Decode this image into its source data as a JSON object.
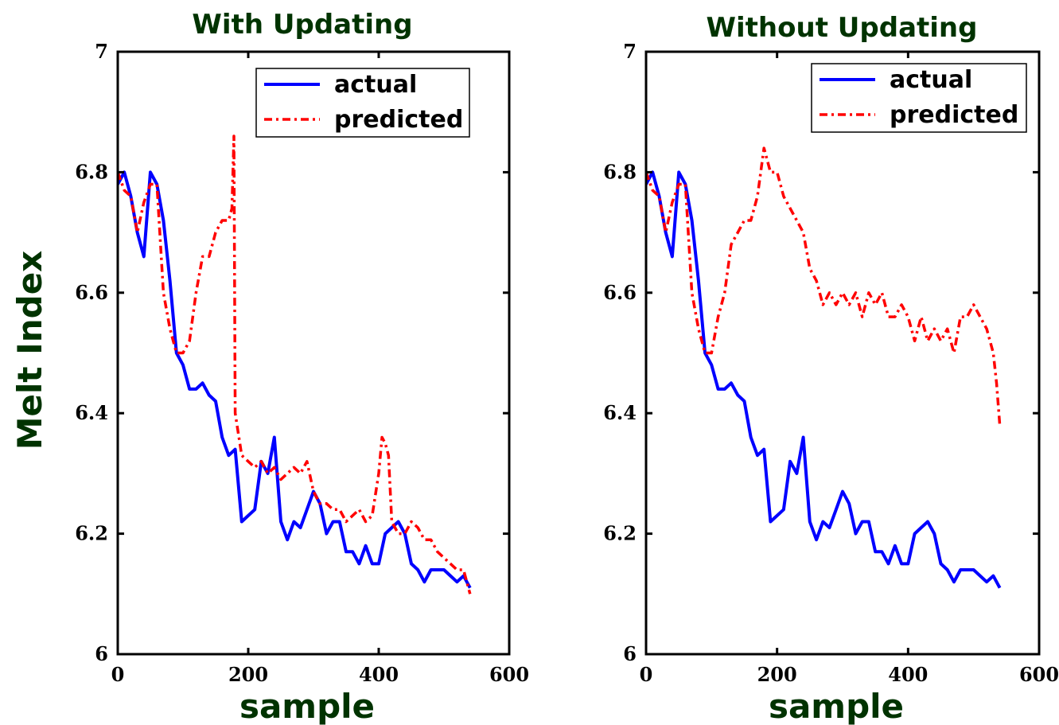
{
  "colors": {
    "actual": "#0000ff",
    "predicted": "#ff0000",
    "label": "#003300",
    "axis": "#000000"
  },
  "chart_data": [
    {
      "type": "line",
      "title": "With Updating",
      "xlabel": "sample",
      "ylabel": "Melt Index",
      "xlim": [
        0,
        600
      ],
      "ylim": [
        6,
        7
      ],
      "xticks": [
        "0",
        "200",
        "400",
        "600"
      ],
      "yticks": [
        "6",
        "6.2",
        "6.4",
        "6.6",
        "6.8",
        "7"
      ],
      "legend_position": "top-right",
      "grid": false,
      "series": [
        {
          "name": "actual",
          "x": [
            0,
            10,
            20,
            30,
            40,
            50,
            60,
            70,
            80,
            90,
            100,
            110,
            120,
            130,
            140,
            150,
            160,
            170,
            180,
            190,
            200,
            210,
            220,
            230,
            240,
            250,
            260,
            270,
            280,
            290,
            300,
            310,
            320,
            330,
            340,
            350,
            360,
            370,
            380,
            390,
            400,
            410,
            420,
            430,
            440,
            450,
            460,
            470,
            480,
            490,
            500,
            510,
            520,
            530,
            540
          ],
          "y": [
            6.78,
            6.8,
            6.76,
            6.7,
            6.66,
            6.8,
            6.78,
            6.72,
            6.62,
            6.5,
            6.48,
            6.44,
            6.44,
            6.45,
            6.43,
            6.42,
            6.36,
            6.33,
            6.34,
            6.22,
            6.23,
            6.24,
            6.32,
            6.3,
            6.36,
            6.22,
            6.19,
            6.22,
            6.21,
            6.24,
            6.27,
            6.25,
            6.2,
            6.22,
            6.22,
            6.17,
            6.17,
            6.15,
            6.18,
            6.15,
            6.15,
            6.2,
            6.21,
            6.22,
            6.2,
            6.15,
            6.14,
            6.12,
            6.14,
            6.14,
            6.14,
            6.13,
            6.12,
            6.13,
            6.11
          ]
        },
        {
          "name": "predicted",
          "x": [
            0,
            10,
            20,
            30,
            40,
            50,
            60,
            70,
            80,
            90,
            100,
            110,
            120,
            130,
            140,
            150,
            160,
            170,
            175,
            178,
            180,
            190,
            200,
            210,
            220,
            230,
            240,
            250,
            260,
            270,
            280,
            290,
            300,
            310,
            320,
            330,
            340,
            350,
            360,
            370,
            380,
            390,
            400,
            405,
            410,
            415,
            420,
            430,
            440,
            450,
            460,
            470,
            480,
            490,
            500,
            510,
            520,
            530,
            540
          ],
          "y": [
            6.8,
            6.77,
            6.76,
            6.7,
            6.75,
            6.78,
            6.78,
            6.6,
            6.54,
            6.5,
            6.5,
            6.52,
            6.6,
            6.66,
            6.66,
            6.7,
            6.72,
            6.72,
            6.74,
            6.86,
            6.4,
            6.33,
            6.32,
            6.31,
            6.32,
            6.3,
            6.31,
            6.29,
            6.3,
            6.31,
            6.3,
            6.32,
            6.27,
            6.25,
            6.25,
            6.24,
            6.24,
            6.22,
            6.23,
            6.24,
            6.22,
            6.23,
            6.3,
            6.36,
            6.35,
            6.33,
            6.22,
            6.2,
            6.2,
            6.22,
            6.21,
            6.19,
            6.19,
            6.17,
            6.16,
            6.15,
            6.14,
            6.14,
            6.1
          ]
        }
      ]
    },
    {
      "type": "line",
      "title": "Without Updating",
      "xlabel": "sample",
      "ylabel": "",
      "xlim": [
        0,
        600
      ],
      "ylim": [
        6,
        7
      ],
      "xticks": [
        "0",
        "200",
        "400",
        "600"
      ],
      "yticks": [
        "6",
        "6.2",
        "6.4",
        "6.6",
        "6.8",
        "7"
      ],
      "legend_position": "top-right",
      "grid": false,
      "series": [
        {
          "name": "actual",
          "x": [
            0,
            10,
            20,
            30,
            40,
            50,
            60,
            70,
            80,
            90,
            100,
            110,
            120,
            130,
            140,
            150,
            160,
            170,
            180,
            190,
            200,
            210,
            220,
            230,
            240,
            250,
            260,
            270,
            280,
            290,
            300,
            310,
            320,
            330,
            340,
            350,
            360,
            370,
            380,
            390,
            400,
            410,
            420,
            430,
            440,
            450,
            460,
            470,
            480,
            490,
            500,
            510,
            520,
            530,
            540
          ],
          "y": [
            6.78,
            6.8,
            6.76,
            6.7,
            6.66,
            6.8,
            6.78,
            6.72,
            6.62,
            6.5,
            6.48,
            6.44,
            6.44,
            6.45,
            6.43,
            6.42,
            6.36,
            6.33,
            6.34,
            6.22,
            6.23,
            6.24,
            6.32,
            6.3,
            6.36,
            6.22,
            6.19,
            6.22,
            6.21,
            6.24,
            6.27,
            6.25,
            6.2,
            6.22,
            6.22,
            6.17,
            6.17,
            6.15,
            6.18,
            6.15,
            6.15,
            6.2,
            6.21,
            6.22,
            6.2,
            6.15,
            6.14,
            6.12,
            6.14,
            6.14,
            6.14,
            6.13,
            6.12,
            6.13,
            6.11
          ]
        },
        {
          "name": "predicted",
          "x": [
            0,
            10,
            20,
            30,
            40,
            50,
            60,
            70,
            80,
            90,
            100,
            110,
            120,
            130,
            140,
            150,
            160,
            170,
            180,
            190,
            200,
            210,
            220,
            230,
            240,
            250,
            260,
            270,
            280,
            290,
            300,
            310,
            320,
            330,
            340,
            350,
            360,
            370,
            380,
            390,
            400,
            410,
            420,
            430,
            440,
            450,
            460,
            470,
            480,
            490,
            500,
            510,
            520,
            530,
            535,
            540
          ],
          "y": [
            6.8,
            6.77,
            6.76,
            6.7,
            6.75,
            6.78,
            6.78,
            6.6,
            6.54,
            6.5,
            6.5,
            6.56,
            6.6,
            6.68,
            6.7,
            6.72,
            6.72,
            6.76,
            6.84,
            6.8,
            6.8,
            6.76,
            6.74,
            6.72,
            6.7,
            6.64,
            6.62,
            6.58,
            6.6,
            6.58,
            6.6,
            6.58,
            6.6,
            6.56,
            6.6,
            6.58,
            6.6,
            6.56,
            6.56,
            6.58,
            6.56,
            6.52,
            6.56,
            6.52,
            6.54,
            6.52,
            6.54,
            6.5,
            6.56,
            6.56,
            6.58,
            6.56,
            6.54,
            6.5,
            6.45,
            6.38
          ]
        }
      ]
    }
  ]
}
